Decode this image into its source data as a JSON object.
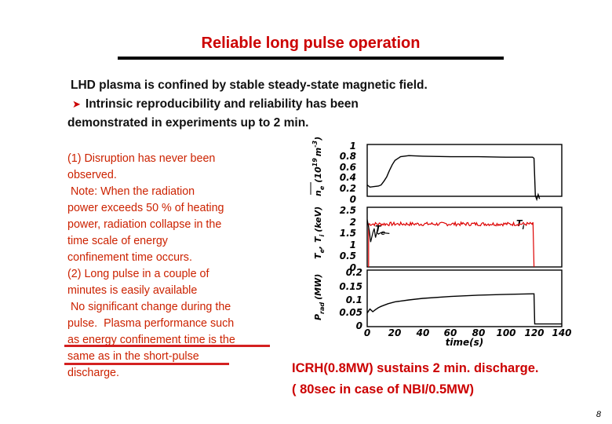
{
  "title": "Reliable long pulse operation",
  "intro": {
    "line1": "LHD plasma is confined by stable steady-state magnetic field.",
    "line2": "Intrinsic reproducibility and reliability has been",
    "line3": "demonstrated in experiments up to 2 min.",
    "arrow_icon": "right-arrow-icon"
  },
  "left_lines": [
    "(1) Disruption has never been",
    "observed.",
    " Note: When the radiation",
    "power exceeds 50 % of heating",
    "power, radiation collapse in the",
    "time scale of energy",
    "confinement time occurs.",
    "(2) Long pulse in a couple of",
    "minutes is easily available",
    " No significant change during the",
    "pulse.  Plasma performance such",
    "as energy confinement time is the",
    "same as in the short-pulse",
    "discharge."
  ],
  "caption": {
    "line1": "ICRH(0.8MW) sustains 2 min. discharge.",
    "line2": "( 80sec in case of NBI/0.5MW)"
  },
  "page_number": "8",
  "colors": {
    "title": "#cc0000",
    "body_red": "#cc2200",
    "trace_red": "#dd0000"
  },
  "chart_data": {
    "type": "line",
    "xlabel": "time(s)",
    "x_ticks": [
      "0",
      "20",
      "40",
      "60",
      "80",
      "100",
      "120",
      "140"
    ],
    "xlim": [
      0,
      140
    ],
    "panels": [
      {
        "ylabel": "n_e (10^19 m^-3)",
        "ylabel_main": "n",
        "ylabel_sub": "e",
        "ylabel_paren": "(10",
        "ylabel_exp": "19",
        "ylabel_unit": "m",
        "ylabel_unit_exp": "-3",
        "ylabel_close": ")",
        "y_ticks": [
          "1",
          "0.8",
          "0.6",
          "0.4",
          "0.2",
          "0"
        ],
        "ylim": [
          0,
          1
        ],
        "series": [
          {
            "name": "n_e",
            "color": "#000000",
            "points": [
              [
                0,
                0.3
              ],
              [
                2,
                0.26
              ],
              [
                5,
                0.27
              ],
              [
                8,
                0.28
              ],
              [
                10,
                0.3
              ],
              [
                12,
                0.37
              ],
              [
                14,
                0.45
              ],
              [
                16,
                0.57
              ],
              [
                18,
                0.68
              ],
              [
                20,
                0.76
              ],
              [
                24,
                0.83
              ],
              [
                30,
                0.85
              ],
              [
                40,
                0.84
              ],
              [
                60,
                0.83
              ],
              [
                80,
                0.83
              ],
              [
                100,
                0.82
              ],
              [
                119,
                0.82
              ],
              [
                120,
                0.8
              ],
              [
                121,
                0.1
              ],
              [
                122,
                0.03
              ],
              [
                123,
                0.12
              ],
              [
                124,
                0.04
              ]
            ]
          }
        ]
      },
      {
        "ylabel": "T_e, T_i (keV)",
        "ylabel_main": "T",
        "ylabel_sub": "e",
        "ylabel_mid": ", T",
        "ylabel_sub2": "i",
        "ylabel_unit": "(keV)",
        "y_ticks": [
          "2.5",
          "2",
          "1.5",
          "1",
          "0.5",
          "0"
        ],
        "ylim": [
          0,
          2.5
        ],
        "series": [
          {
            "name": "T_e",
            "label": "T",
            "label_sub": "e",
            "color": "#000000",
            "points": [
              [
                0,
                2.1
              ],
              [
                1.5,
                1.6
              ],
              [
                2.5,
                1.1
              ],
              [
                4,
                1.5
              ],
              [
                5,
                1.7
              ],
              [
                6,
                1.3
              ],
              [
                7,
                1.55
              ],
              [
                8,
                1.45
              ],
              [
                10,
                1.52
              ],
              [
                13,
                1.5
              ],
              [
                16,
                1.48
              ]
            ]
          },
          {
            "name": "T_i",
            "label": "T",
            "label_sub": "i",
            "color": "#dd0000",
            "mean": 1.9,
            "x_start": 1,
            "x_end": 120
          }
        ]
      },
      {
        "ylabel": "P_rad (MW)",
        "ylabel_main": "P",
        "ylabel_sub": "rad",
        "ylabel_unit": "(MW)",
        "y_ticks": [
          "0.2",
          "0.15",
          "0.1",
          "0.05",
          "0"
        ],
        "ylim": [
          0,
          0.2
        ],
        "series": [
          {
            "name": "P_rad",
            "color": "#000000",
            "points": [
              [
                0,
                0.045
              ],
              [
                2,
                0.06
              ],
              [
                4,
                0.05
              ],
              [
                6,
                0.058
              ],
              [
                8,
                0.065
              ],
              [
                10,
                0.07
              ],
              [
                12,
                0.074
              ],
              [
                15,
                0.08
              ],
              [
                20,
                0.087
              ],
              [
                30,
                0.094
              ],
              [
                40,
                0.1
              ],
              [
                60,
                0.107
              ],
              [
                80,
                0.112
              ],
              [
                100,
                0.115
              ],
              [
                119,
                0.117
              ],
              [
                120,
                0.117
              ],
              [
                120.5,
                0.004
              ],
              [
                130,
                0.004
              ],
              [
                140,
                0.004
              ]
            ]
          }
        ]
      }
    ]
  }
}
